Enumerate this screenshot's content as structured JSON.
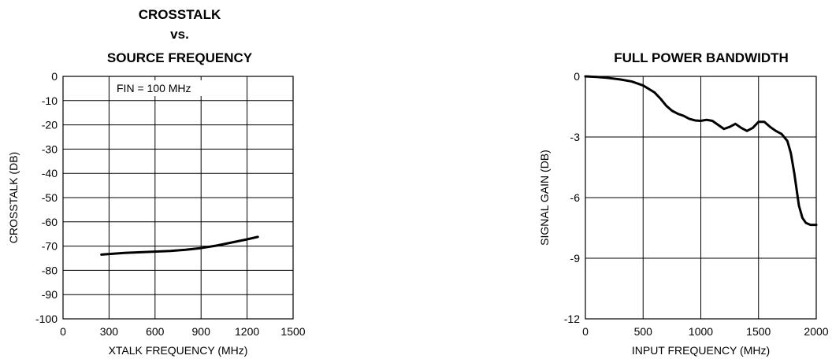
{
  "chart_data": [
    {
      "type": "line",
      "title_lines": [
        "CROSSTALK",
        "vs.",
        "SOURCE FREQUENCY"
      ],
      "xlabel": "XTALK  FREQUENCY (MHz)",
      "ylabel": "CROSSTALK (DB)",
      "annotation": "FIN = 100 MHz",
      "xlim": [
        0,
        1500
      ],
      "ylim": [
        -100,
        0
      ],
      "xticks": [
        0,
        300,
        600,
        900,
        1200,
        1500
      ],
      "yticks": [
        0,
        -10,
        -20,
        -30,
        -40,
        -50,
        -60,
        -70,
        -80,
        -90,
        -100
      ],
      "xgrid": [
        0,
        300,
        600,
        900,
        1200,
        1500
      ],
      "ygrid": [
        0,
        -10,
        -20,
        -30,
        -40,
        -50,
        -60,
        -70,
        -80,
        -90,
        -100
      ],
      "grid": true,
      "series": [
        {
          "x": [
            250,
            400,
            550,
            700,
            800,
            900,
            1000,
            1100,
            1200,
            1270
          ],
          "y": [
            -73.5,
            -72.8,
            -72.4,
            -72.0,
            -71.5,
            -70.8,
            -69.8,
            -68.5,
            -67.2,
            -66.2
          ]
        }
      ]
    },
    {
      "type": "line",
      "title_lines": [
        "FULL POWER BANDWIDTH"
      ],
      "xlabel": "INPUT FREQUENCY (MHz)",
      "ylabel": "SIGNAL GAIN (DB)",
      "xlim": [
        0,
        2000
      ],
      "ylim": [
        -12,
        0
      ],
      "xticks": [
        0,
        500,
        1000,
        1500,
        2000
      ],
      "yticks": [
        0,
        -3,
        -6,
        -9,
        -12
      ],
      "xgrid": [
        0,
        500,
        1000,
        1500,
        2000
      ],
      "ygrid": [
        0,
        -3,
        -6,
        -9,
        -12
      ],
      "grid": true,
      "series": [
        {
          "x": [
            0,
            100,
            200,
            300,
            400,
            500,
            600,
            650,
            700,
            750,
            800,
            850,
            900,
            950,
            1000,
            1050,
            1100,
            1150,
            1200,
            1250,
            1300,
            1350,
            1400,
            1450,
            1500,
            1550,
            1600,
            1650,
            1700,
            1750,
            1780,
            1810,
            1830,
            1850,
            1880,
            1910,
            1950,
            2000
          ],
          "y": [
            0,
            -0.03,
            -0.08,
            -0.15,
            -0.25,
            -0.45,
            -0.8,
            -1.1,
            -1.45,
            -1.7,
            -1.85,
            -1.95,
            -2.1,
            -2.18,
            -2.2,
            -2.15,
            -2.2,
            -2.4,
            -2.6,
            -2.5,
            -2.35,
            -2.55,
            -2.7,
            -2.55,
            -2.25,
            -2.25,
            -2.5,
            -2.7,
            -2.85,
            -3.2,
            -3.8,
            -4.8,
            -5.6,
            -6.4,
            -7.0,
            -7.25,
            -7.35,
            -7.35
          ]
        }
      ]
    }
  ]
}
